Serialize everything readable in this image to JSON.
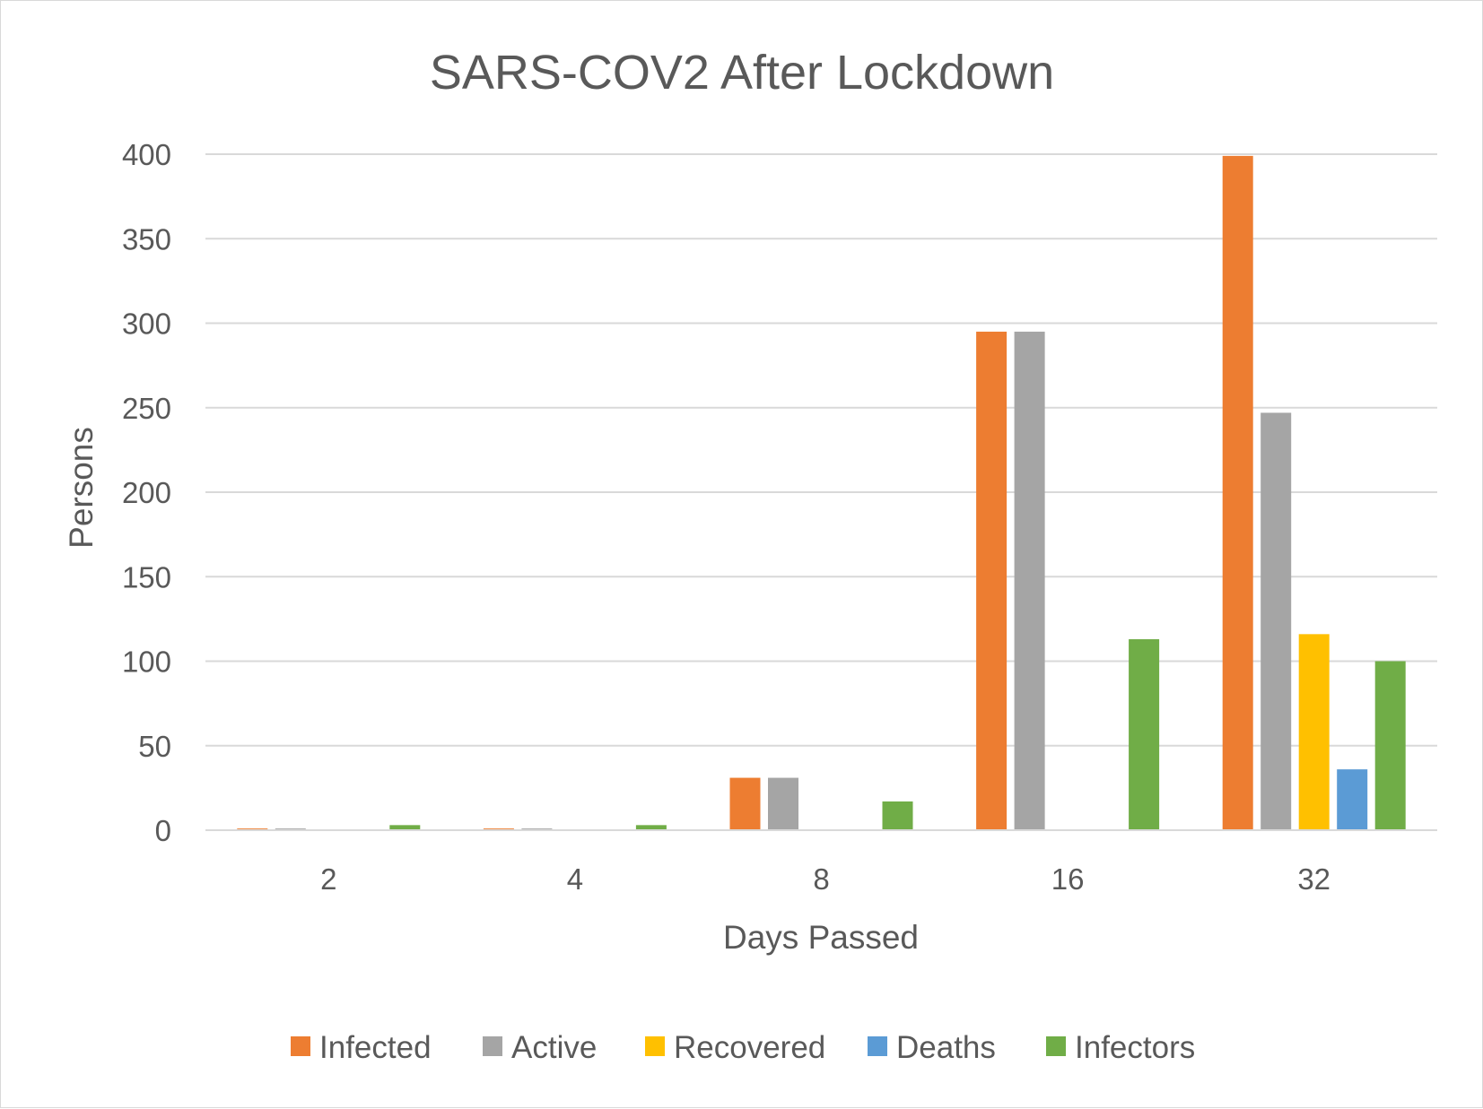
{
  "chart_data": {
    "type": "bar",
    "title": "SARS-COV2 After Lockdown",
    "xlabel": "Days Passed",
    "ylabel": "Persons",
    "categories": [
      "2",
      "4",
      "8",
      "16",
      "32"
    ],
    "ylim": [
      0,
      400
    ],
    "yticks": [
      "0",
      "50",
      "100",
      "150",
      "200",
      "250",
      "300",
      "350",
      "400"
    ],
    "grid": true,
    "legend_position": "bottom",
    "series": [
      {
        "name": "Infected",
        "color": "#ed7d31",
        "values": [
          1,
          1,
          31,
          295,
          399
        ]
      },
      {
        "name": "Active",
        "color": "#a5a5a5",
        "values": [
          1,
          1,
          31,
          295,
          247
        ]
      },
      {
        "name": "Recovered",
        "color": "#ffc000",
        "values": [
          0,
          0,
          0,
          0,
          116
        ]
      },
      {
        "name": "Deaths",
        "color": "#5b9bd5",
        "values": [
          0,
          0,
          0,
          0,
          36
        ]
      },
      {
        "name": "Infectors",
        "color": "#70ad47",
        "values": [
          3,
          3,
          17,
          113,
          100
        ]
      }
    ]
  }
}
